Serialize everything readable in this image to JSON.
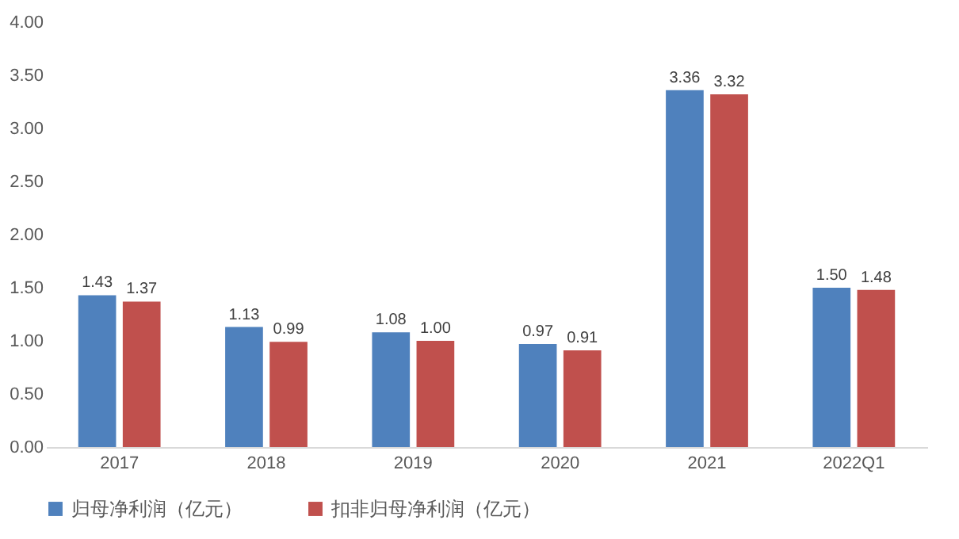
{
  "chart_data": {
    "type": "bar",
    "categories": [
      "2017",
      "2018",
      "2019",
      "2020",
      "2021",
      "2022Q1"
    ],
    "series": [
      {
        "name": "归母净利润（亿元）",
        "color": "#4f81bd",
        "values": [
          1.43,
          1.13,
          1.08,
          0.97,
          3.36,
          1.5
        ],
        "value_labels": [
          "1.43",
          "1.13",
          "1.08",
          "0.97",
          "3.36",
          "1.50"
        ]
      },
      {
        "name": "扣非归母净利润（亿元）",
        "color": "#c0504d",
        "values": [
          1.37,
          0.99,
          1.0,
          0.91,
          3.32,
          1.48
        ],
        "value_labels": [
          "1.37",
          "0.99",
          "1.00",
          "0.91",
          "3.32",
          "1.48"
        ]
      }
    ],
    "ylim": [
      0,
      4
    ],
    "yticks": [
      {
        "value": 0,
        "label": "0.00"
      },
      {
        "value": 0.5,
        "label": "0.50"
      },
      {
        "value": 1,
        "label": "1.00"
      },
      {
        "value": 1.5,
        "label": "1.50"
      },
      {
        "value": 2,
        "label": "2.00"
      },
      {
        "value": 2.5,
        "label": "2.50"
      },
      {
        "value": 3,
        "label": "3.00"
      },
      {
        "value": 3.5,
        "label": "3.50"
      },
      {
        "value": 4,
        "label": "4.00"
      }
    ],
    "legend": "bottom"
  }
}
